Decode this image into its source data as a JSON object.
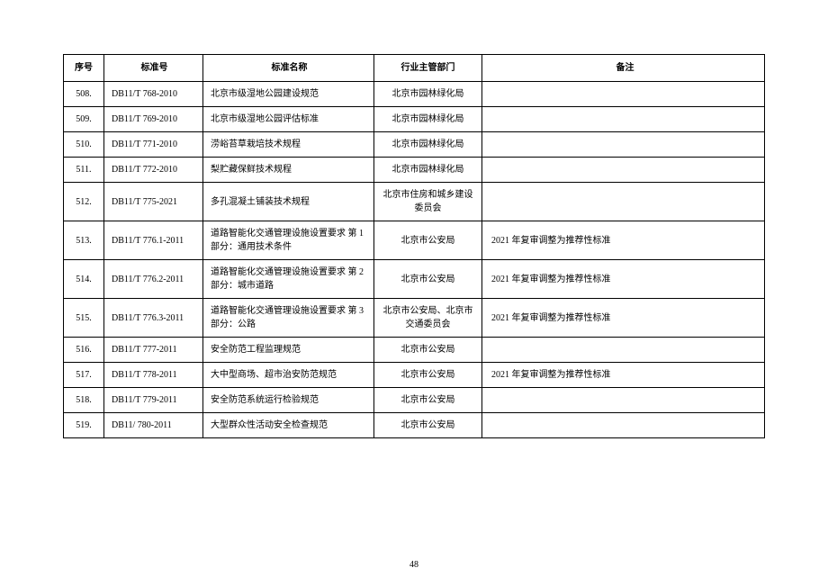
{
  "pageNumber": "48",
  "headers": {
    "seq": "序号",
    "code": "标准号",
    "name": "标准名称",
    "dept": "行业主管部门",
    "note": "备注"
  },
  "rows": [
    {
      "seq": "508.",
      "code": "DB11/T 768-2010",
      "name": "北京市级湿地公园建设规范",
      "dept": "北京市园林绿化局",
      "note": ""
    },
    {
      "seq": "509.",
      "code": "DB11/T 769-2010",
      "name": "北京市级湿地公园评估标准",
      "dept": "北京市园林绿化局",
      "note": ""
    },
    {
      "seq": "510.",
      "code": "DB11/T 771-2010",
      "name": "涝峪苔草栽培技术规程",
      "dept": "北京市园林绿化局",
      "note": ""
    },
    {
      "seq": "511.",
      "code": "DB11/T 772-2010",
      "name": "梨贮藏保鲜技术规程",
      "dept": "北京市园林绿化局",
      "note": ""
    },
    {
      "seq": "512.",
      "code": "DB11/T 775-2021",
      "name": "多孔混凝土铺装技术规程",
      "dept": "北京市住房和城乡建设委员会",
      "note": ""
    },
    {
      "seq": "513.",
      "code": "DB11/T 776.1-2011",
      "name": "道路智能化交通管理设施设置要求 第 1 部分：通用技术条件",
      "dept": "北京市公安局",
      "note": "2021 年复审调整为推荐性标准"
    },
    {
      "seq": "514.",
      "code": "DB11/T 776.2-2011",
      "name": "道路智能化交通管理设施设置要求 第 2 部分：城市道路",
      "dept": "北京市公安局",
      "note": "2021 年复审调整为推荐性标准"
    },
    {
      "seq": "515.",
      "code": "DB11/T 776.3-2011",
      "name": "道路智能化交通管理设施设置要求 第 3 部分：公路",
      "dept": "北京市公安局、北京市交通委员会",
      "note": "2021 年复审调整为推荐性标准"
    },
    {
      "seq": "516.",
      "code": "DB11/T 777-2011",
      "name": "安全防范工程监理规范",
      "dept": "北京市公安局",
      "note": ""
    },
    {
      "seq": "517.",
      "code": "DB11/T 778-2011",
      "name": "大中型商场、超市治安防范规范",
      "dept": "北京市公安局",
      "note": "2021 年复审调整为推荐性标准"
    },
    {
      "seq": "518.",
      "code": "DB11/T 779-2011",
      "name": "安全防范系统运行检验规范",
      "dept": "北京市公安局",
      "note": ""
    },
    {
      "seq": "519.",
      "code": "DB11/ 780-2011",
      "name": "大型群众性活动安全检查规范",
      "dept": "北京市公安局",
      "note": ""
    }
  ]
}
